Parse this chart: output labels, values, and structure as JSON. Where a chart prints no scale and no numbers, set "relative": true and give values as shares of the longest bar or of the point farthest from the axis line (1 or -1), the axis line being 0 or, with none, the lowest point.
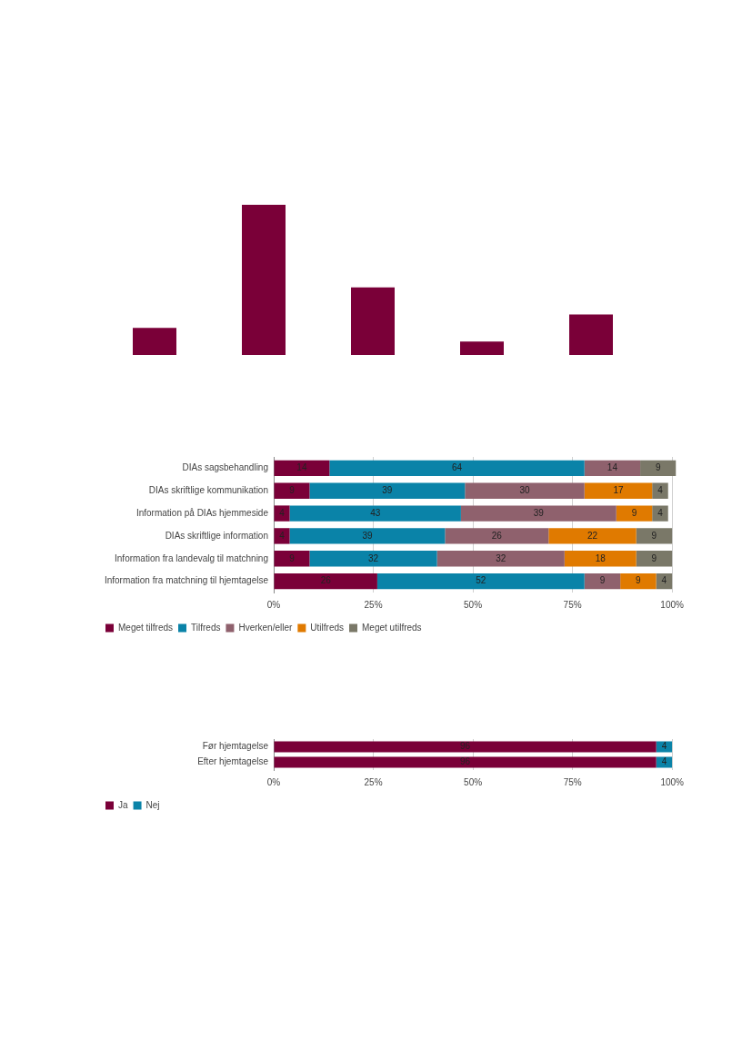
{
  "chart_data": [
    {
      "type": "bar",
      "relative": true,
      "categories": [
        null,
        null,
        null,
        null,
        null
      ],
      "values": [
        0.18,
        1,
        0.45,
        0.09,
        0.27
      ],
      "color": "#7a0038",
      "grid": false,
      "legend": false,
      "tick_labels": false
    },
    {
      "type": "bar",
      "orientation": "horizontal",
      "stacked": true,
      "data_labels": true,
      "grid": "x",
      "legend": "bottom left",
      "categories": [
        "DIAs sagsbehandling",
        "DIAs skriftlige kommunikation",
        "Information på DIAs hjemmeside",
        "DIAs skriftlige information",
        "Information fra landevalg til matchning",
        "Information fra matchning til hjemtagelse"
      ],
      "xlim": [
        0,
        101
      ],
      "xticks": [
        {
          "value": 0,
          "label": "0%"
        },
        {
          "value": 25,
          "label": "25%"
        },
        {
          "value": 50,
          "label": "50%"
        },
        {
          "value": 75,
          "label": "75%"
        },
        {
          "value": 100,
          "label": "100%"
        }
      ],
      "series": [
        {
          "name": "Meget tilfreds",
          "color": "#7a0038",
          "values": [
            14,
            9,
            4,
            4,
            9,
            26
          ]
        },
        {
          "name": "Tilfreds",
          "color": "#0a83a8",
          "values": [
            64,
            39,
            43,
            39,
            32,
            52
          ]
        },
        {
          "name": "Hverken/eller",
          "color": "#8f616d",
          "values": [
            14,
            30,
            39,
            26,
            32,
            9
          ]
        },
        {
          "name": "Utilfreds",
          "color": "#e07a00",
          "values": [
            null,
            17,
            9,
            22,
            18,
            9
          ]
        },
        {
          "name": "Meget utilfreds",
          "color": "#7a7868",
          "values": [
            9,
            4,
            4,
            9,
            9,
            4
          ]
        }
      ]
    },
    {
      "type": "bar",
      "orientation": "horizontal",
      "stacked": true,
      "data_labels": true,
      "grid": "x",
      "legend": "bottom left",
      "categories": [
        "Før hjemtagelse",
        "Efter hjemtagelse"
      ],
      "xlim": [
        0,
        100
      ],
      "xticks": [
        {
          "value": 0,
          "label": "0%"
        },
        {
          "value": 25,
          "label": "25%"
        },
        {
          "value": 50,
          "label": "50%"
        },
        {
          "value": 75,
          "label": "75%"
        },
        {
          "value": 100,
          "label": "100%"
        }
      ],
      "series": [
        {
          "name": "Ja",
          "color": "#7a0038",
          "values": [
            96,
            96
          ]
        },
        {
          "name": "Nej",
          "color": "#0a83a8",
          "values": [
            4,
            4
          ]
        }
      ]
    }
  ]
}
